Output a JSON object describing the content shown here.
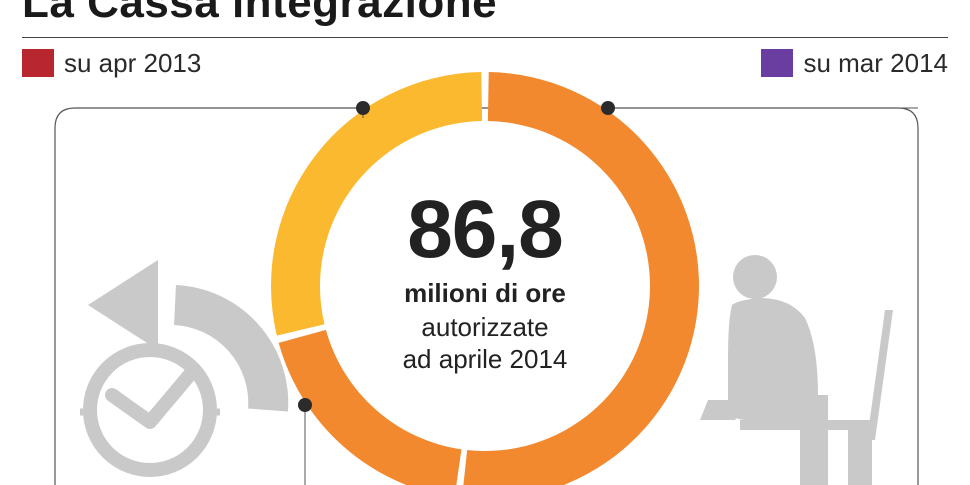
{
  "title": "La Cassa integrazione",
  "legend": [
    {
      "label": "su apr 2013",
      "color": "#b8262f"
    },
    {
      "label": "su mar 2014",
      "color": "#6a3ea1"
    }
  ],
  "center": {
    "value": "86,8",
    "line1": "milioni di ore",
    "line2": "autorizzate",
    "line3": "ad aprile 2014"
  },
  "colors": {
    "yellow": "#fbb930",
    "orange": "#f3892f",
    "gray_icon": "#c9c9c9",
    "frame": "#555555"
  },
  "icons": [
    "clock-rewind-icon",
    "seated-person-icon"
  ],
  "chart_data": {
    "type": "pie",
    "style": "donut",
    "total_label": "86,8",
    "unit": "milioni di ore",
    "segments": [
      {
        "name": "",
        "share": 0.52,
        "color": "#f3892f"
      },
      {
        "name": "",
        "share": 0.19,
        "color": "#f3892f"
      },
      {
        "name": "",
        "share": 0.29,
        "color": "#fbb930"
      }
    ]
  }
}
